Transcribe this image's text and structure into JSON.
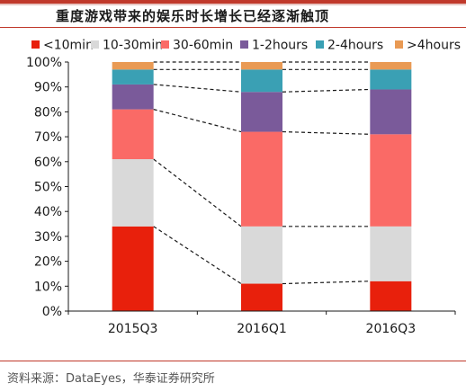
{
  "title": "重度游戏带来的娱乐时长增长已经逐渐触顶",
  "source": "资料来源：DataEyes，华泰证券研究所",
  "chart_data": {
    "type": "bar",
    "stacked": true,
    "categories": [
      "2015Q3",
      "2016Q1",
      "2016Q3"
    ],
    "series": [
      {
        "name": "<10min",
        "color": "#e8200c",
        "values": [
          34,
          11,
          12
        ]
      },
      {
        "name": "10-30min",
        "color": "#d9d9d9",
        "values": [
          27,
          23,
          22
        ]
      },
      {
        "name": "30-60min",
        "color": "#fa6a66",
        "values": [
          20,
          38,
          37
        ]
      },
      {
        "name": "1-2hours",
        "color": "#7a5a9a",
        "values": [
          10,
          16,
          18
        ]
      },
      {
        "name": "2-4hours",
        "color": "#3aa0b4",
        "values": [
          6,
          9,
          8
        ]
      },
      {
        "name": ">4hours",
        "color": "#e99a54",
        "values": [
          3,
          3,
          3
        ]
      }
    ],
    "yticks": [
      "0%",
      "10%",
      "20%",
      "30%",
      "40%",
      "50%",
      "60%",
      "70%",
      "80%",
      "90%",
      "100%"
    ],
    "ylim": [
      0,
      100
    ],
    "legend_position": "top",
    "connector_lines": "dashed",
    "grid": false
  }
}
